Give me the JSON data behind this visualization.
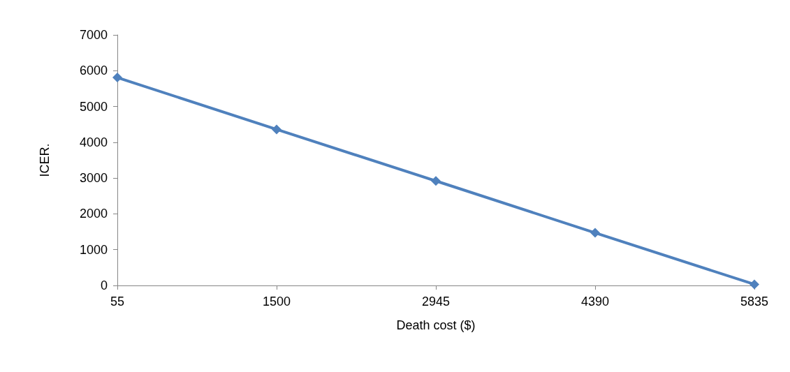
{
  "chart_data": {
    "type": "line",
    "xlabel": "Death cost ($)",
    "ylabel": "ICER.",
    "categories": [
      "55",
      "1500",
      "2945",
      "4390",
      "5835"
    ],
    "series": [
      {
        "color": "#4f81bd",
        "values": [
          5810,
          4360,
          2920,
          1470,
          30
        ]
      }
    ],
    "ylim": [
      0,
      7000
    ],
    "yticks": [
      0,
      1000,
      2000,
      3000,
      4000,
      5000,
      6000,
      7000
    ],
    "marker": "diamond",
    "line_style": "solid"
  }
}
